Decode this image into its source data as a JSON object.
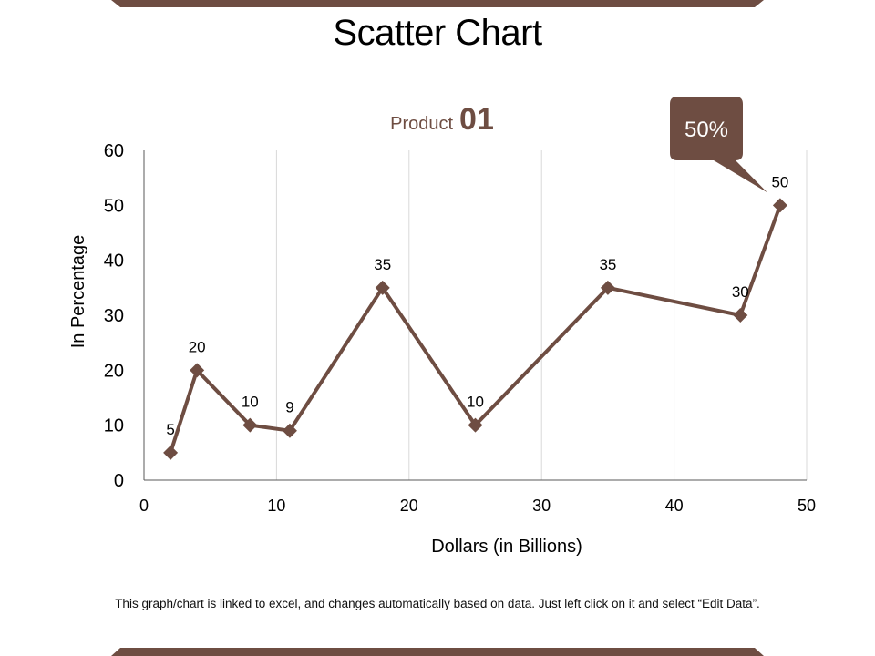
{
  "slide_title": "Scatter Chart",
  "footnote": "This graph/chart is linked to excel, and changes automatically based on data. Just left click on it and select “Edit Data”.",
  "colors": {
    "accent": "#6e4d42",
    "grid": "#d9d9d9",
    "axis": "#595959"
  },
  "callout": {
    "text": "50%"
  },
  "chart_data": {
    "type": "scatter",
    "title": {
      "prefix": "Product",
      "number": "01"
    },
    "xlabel": "Dollars (in Billions)",
    "ylabel": "In Percentage",
    "xlim": [
      0,
      50
    ],
    "ylim": [
      0,
      60
    ],
    "xticks": [
      0,
      10,
      20,
      30,
      40,
      50
    ],
    "yticks": [
      0,
      10,
      20,
      30,
      40,
      50,
      60
    ],
    "vertical_grid": true,
    "lines_connected": true,
    "marker": "diamond",
    "points": [
      {
        "x": 2,
        "y": 5,
        "label": "5"
      },
      {
        "x": 4,
        "y": 20,
        "label": "20"
      },
      {
        "x": 8,
        "y": 10,
        "label": "10"
      },
      {
        "x": 11,
        "y": 9,
        "label": "9"
      },
      {
        "x": 18,
        "y": 35,
        "label": "35"
      },
      {
        "x": 25,
        "y": 10,
        "label": "10"
      },
      {
        "x": 35,
        "y": 35,
        "label": "35"
      },
      {
        "x": 45,
        "y": 30,
        "label": "30"
      },
      {
        "x": 48,
        "y": 50,
        "label": "50"
      }
    ]
  }
}
